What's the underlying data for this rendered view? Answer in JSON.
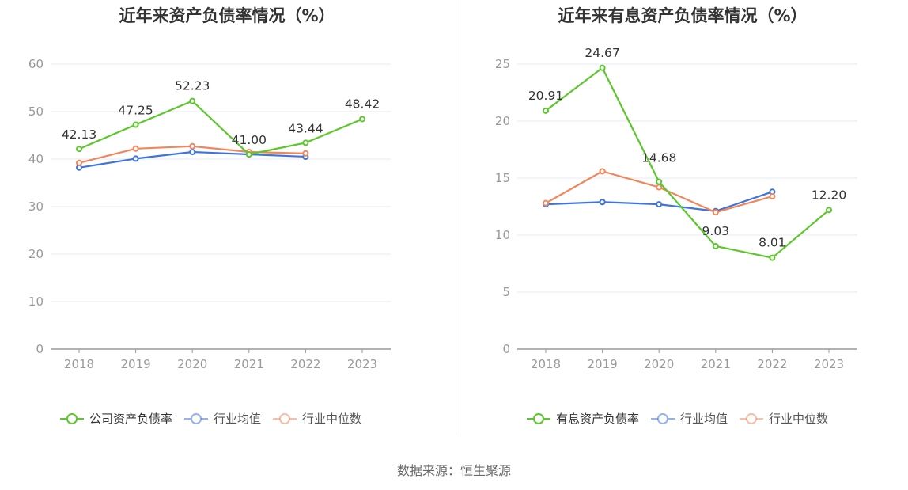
{
  "chart_data": [
    {
      "type": "line",
      "title": "近年来资产负债率情况（%）",
      "categories": [
        "2018",
        "2019",
        "2020",
        "2021",
        "2022",
        "2023"
      ],
      "ylim": [
        0,
        60
      ],
      "yticks": [
        0,
        10,
        20,
        30,
        40,
        50,
        60
      ],
      "grid": true,
      "legend_position": "bottom",
      "series": [
        {
          "name": "公司资产负债率",
          "color": "#5cc72c",
          "values": [
            42.13,
            47.25,
            52.23,
            41.0,
            43.44,
            48.42
          ],
          "labels": [
            "42.13",
            "47.25",
            "52.23",
            "41.00",
            "43.44",
            "48.42"
          ]
        },
        {
          "name": "行业均值",
          "color": "#3f73e0",
          "values": [
            38.2,
            40.1,
            41.5,
            41.0,
            40.5,
            null
          ]
        },
        {
          "name": "行业中位数",
          "color": "#f0865c",
          "values": [
            39.2,
            42.2,
            42.7,
            41.5,
            41.2,
            null
          ]
        }
      ]
    },
    {
      "type": "line",
      "title": "近年来有息资产负债率情况（%）",
      "categories": [
        "2018",
        "2019",
        "2020",
        "2021",
        "2022",
        "2023"
      ],
      "ylim": [
        0,
        25
      ],
      "yticks": [
        0,
        5,
        10,
        15,
        20,
        25
      ],
      "grid": true,
      "legend_position": "bottom",
      "series": [
        {
          "name": "有息资产负债率",
          "color": "#5cc72c",
          "values": [
            20.91,
            24.67,
            14.68,
            9.03,
            8.01,
            12.2
          ],
          "labels": [
            "20.91",
            "24.67",
            "14.68",
            "9.03",
            "8.01",
            "12.20"
          ]
        },
        {
          "name": "行业均值",
          "color": "#3f73e0",
          "values": [
            12.7,
            12.9,
            12.7,
            12.1,
            13.8,
            null
          ]
        },
        {
          "name": "行业中位数",
          "color": "#f0865c",
          "values": [
            12.8,
            15.6,
            14.2,
            12.0,
            13.4,
            null
          ]
        }
      ]
    }
  ],
  "source": "数据来源：恒生聚源"
}
